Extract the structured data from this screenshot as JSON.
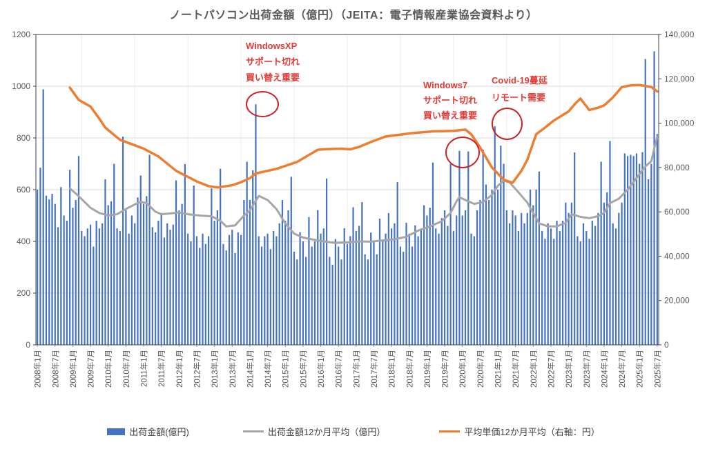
{
  "title": "ノートパソコン出荷金額（億円）（JEITA：電子情報産業協会資料より）",
  "colors": {
    "bar": "#4472C4",
    "avg_line": "#A6A6A6",
    "price_line": "#ED7D31",
    "annotation_text": "#E53935",
    "annotation_circle": "#CB2121",
    "axis_text": "#595959",
    "gridline": "#D9D9D9",
    "gridline_vertical": "#ECECEC",
    "border": "#404040"
  },
  "legend": {
    "items": [
      {
        "label": "出荷金額(億円)",
        "type": "bar"
      },
      {
        "label": "出荷金額12か月平均（億円）",
        "type": "line-gray"
      },
      {
        "label": "平均単価12か月平均（右軸：円）",
        "type": "line-orange"
      }
    ]
  },
  "annotations": {
    "windowsxp": {
      "line1": "WindowsXP",
      "line2": "サポート切れ",
      "line3": "買い替え重要"
    },
    "windows7": {
      "line1": "Windows7",
      "line2": "サポート切れ",
      "line3": "買い替え重要"
    },
    "covid": {
      "line1": "Covid-19蔓延",
      "line2": "リモート需要"
    }
  },
  "axes": {
    "left_ticks": [
      "0",
      "200",
      "400",
      "600",
      "800",
      "1000",
      "1200"
    ],
    "right_ticks": [
      "0",
      "20,000",
      "40,000",
      "60,000",
      "80,000",
      "100,000",
      "120,000",
      "140,000"
    ],
    "x_tick_labels": [
      "2008年1月",
      "2008年7月",
      "2009年1月",
      "2009年7月",
      "2010年1月",
      "2010年7月",
      "2011年1月",
      "2011年7月",
      "2012年1月",
      "2012年7月",
      "2013年1月",
      "2013年7月",
      "2014年1月",
      "2014年7月",
      "2015年1月",
      "2015年7月",
      "2016年1月",
      "2016年7月",
      "2017年1月",
      "2017年7月",
      "2018年1月",
      "2018年7月",
      "2019年1月",
      "2019年7月",
      "2020年1月",
      "2020年7月",
      "2021年1月",
      "2021年7月",
      "2022年1月",
      "2022年7月",
      "2023年1月",
      "2023年7月",
      "2024年1月",
      "2024年7月",
      "2025年1月",
      "2025年7月"
    ]
  },
  "chart_data": {
    "type": "bar",
    "title": "ノートパソコン出荷金額（億円）（JEITA：電子情報産業協会資料より）",
    "start_month": "2008-01",
    "end_month": "2025-07",
    "ylim_left": [
      0,
      1200
    ],
    "ylim_right": [
      0,
      140000
    ],
    "grid": true,
    "legend_position": "bottom",
    "bar_series": {
      "name": "出荷金額(億円)",
      "axis": "left",
      "values": [
        600,
        685,
        988,
        577,
        562,
        584,
        545,
        455,
        610,
        500,
        480,
        677,
        530,
        560,
        730,
        440,
        420,
        450,
        465,
        380,
        480,
        450,
        470,
        640,
        540,
        555,
        700,
        450,
        440,
        805,
        520,
        430,
        500,
        470,
        570,
        655,
        545,
        575,
        735,
        455,
        435,
        480,
        510,
        415,
        470,
        445,
        465,
        636,
        520,
        545,
        699,
        430,
        400,
        616,
        420,
        375,
        430,
        390,
        420,
        605,
        480,
        520,
        681,
        390,
        365,
        425,
        445,
        355,
        435,
        425,
        560,
        708,
        560,
        675,
        930,
        420,
        380,
        420,
        430,
        370,
        440,
        420,
        470,
        560,
        480,
        520,
        650,
        360,
        330,
        436,
        400,
        340,
        494,
        380,
        400,
        521,
        430,
        450,
        643,
        340,
        310,
        409,
        380,
        330,
        451,
        390,
        420,
        532,
        440,
        460,
        552,
        350,
        330,
        434,
        400,
        350,
        488,
        400,
        430,
        509,
        450,
        470,
        629,
        380,
        360,
        472,
        430,
        380,
        462,
        420,
        450,
        540,
        500,
        530,
        705,
        450,
        430,
        490,
        520,
        460,
        700,
        440,
        500,
        750,
        500,
        520,
        748,
        430,
        420,
        520,
        560,
        755,
        620,
        560,
        600,
        845,
        600,
        770,
        700,
        520,
        470,
        520,
        500,
        440,
        510,
        470,
        510,
        600,
        540,
        600,
        670,
        440,
        410,
        470,
        450,
        410,
        480,
        440,
        480,
        550,
        510,
        550,
        744,
        420,
        400,
        470,
        440,
        410,
        480,
        460,
        510,
        708,
        550,
        590,
        788,
        470,
        450,
        510,
        550,
        740,
        730,
        735,
        730,
        740,
        700,
        745,
        1105,
        640,
        700,
        1135,
        815
      ]
    },
    "avg_series": {
      "name": "出荷金額12か月平均（億円）",
      "axis": "left",
      "points": [
        [
          "2008-12",
          605
        ],
        [
          "2009-03",
          575
        ],
        [
          "2009-07",
          530
        ],
        [
          "2009-10",
          510
        ],
        [
          "2010-01",
          500
        ],
        [
          "2010-04",
          505
        ],
        [
          "2010-07",
          525
        ],
        [
          "2010-10",
          543
        ],
        [
          "2010-12",
          553
        ],
        [
          "2011-02",
          548
        ],
        [
          "2011-05",
          515
        ],
        [
          "2011-07",
          505
        ],
        [
          "2011-10",
          508
        ],
        [
          "2012-01",
          512
        ],
        [
          "2012-04",
          505
        ],
        [
          "2012-08",
          500
        ],
        [
          "2012-12",
          497
        ],
        [
          "2013-03",
          480
        ],
        [
          "2013-05",
          458
        ],
        [
          "2013-08",
          462
        ],
        [
          "2013-11",
          500
        ],
        [
          "2014-01",
          520
        ],
        [
          "2014-04",
          576
        ],
        [
          "2014-07",
          560
        ],
        [
          "2014-10",
          525
        ],
        [
          "2015-01",
          470
        ],
        [
          "2015-04",
          430
        ],
        [
          "2015-07",
          415
        ],
        [
          "2015-10",
          408
        ],
        [
          "2016-02",
          400
        ],
        [
          "2016-06",
          394
        ],
        [
          "2016-10",
          396
        ],
        [
          "2017-02",
          400
        ],
        [
          "2017-06",
          399
        ],
        [
          "2017-10",
          404
        ],
        [
          "2018-02",
          408
        ],
        [
          "2018-06",
          418
        ],
        [
          "2018-10",
          442
        ],
        [
          "2019-02",
          458
        ],
        [
          "2019-06",
          478
        ],
        [
          "2019-09",
          510
        ],
        [
          "2019-11",
          555
        ],
        [
          "2019-12",
          571
        ],
        [
          "2020-02",
          560
        ],
        [
          "2020-05",
          545
        ],
        [
          "2020-08",
          552
        ],
        [
          "2020-11",
          580
        ],
        [
          "2021-01",
          615
        ],
        [
          "2021-03",
          635
        ],
        [
          "2021-05",
          628
        ],
        [
          "2021-08",
          590
        ],
        [
          "2021-11",
          550
        ],
        [
          "2022-01",
          510
        ],
        [
          "2022-03",
          470
        ],
        [
          "2022-06",
          458
        ],
        [
          "2022-09",
          458
        ],
        [
          "2022-12",
          472
        ],
        [
          "2023-02",
          505
        ],
        [
          "2023-05",
          495
        ],
        [
          "2023-08",
          490
        ],
        [
          "2023-11",
          498
        ],
        [
          "2024-01",
          510
        ],
        [
          "2024-03",
          548
        ],
        [
          "2024-06",
          565
        ],
        [
          "2024-09",
          600
        ],
        [
          "2024-11",
          630
        ],
        [
          "2025-01",
          660
        ],
        [
          "2025-03",
          690
        ],
        [
          "2025-05",
          710
        ],
        [
          "2025-06",
          760
        ],
        [
          "2025-07",
          805
        ]
      ]
    },
    "price_series": {
      "name": "平均単価12か月平均（右軸：円）",
      "axis": "right",
      "points": [
        [
          "2008-12",
          116000
        ],
        [
          "2009-03",
          110500
        ],
        [
          "2009-07",
          107500
        ],
        [
          "2009-10",
          102000
        ],
        [
          "2009-12",
          98000
        ],
        [
          "2010-05",
          92500
        ],
        [
          "2010-10",
          90000
        ],
        [
          "2011-01",
          88500
        ],
        [
          "2011-06",
          85000
        ],
        [
          "2011-12",
          78500
        ],
        [
          "2012-07",
          73700
        ],
        [
          "2012-11",
          71600
        ],
        [
          "2013-02",
          71000
        ],
        [
          "2013-07",
          72000
        ],
        [
          "2013-10",
          73400
        ],
        [
          "2014-01",
          75200
        ],
        [
          "2014-03",
          77300
        ],
        [
          "2014-10",
          79400
        ],
        [
          "2015-05",
          82500
        ],
        [
          "2015-12",
          88000
        ],
        [
          "2016-03",
          88300
        ],
        [
          "2016-08",
          88500
        ],
        [
          "2016-11",
          88200
        ],
        [
          "2017-02",
          89300
        ],
        [
          "2017-06",
          91500
        ],
        [
          "2017-11",
          94000
        ],
        [
          "2018-08",
          95500
        ],
        [
          "2019-03",
          96300
        ],
        [
          "2019-10",
          96500
        ],
        [
          "2020-02",
          97100
        ],
        [
          "2020-04",
          95000
        ],
        [
          "2020-07",
          89000
        ],
        [
          "2020-11",
          80000
        ],
        [
          "2021-01",
          77300
        ],
        [
          "2021-03",
          74500
        ],
        [
          "2021-06",
          73100
        ],
        [
          "2021-09",
          78500
        ],
        [
          "2021-11",
          83500
        ],
        [
          "2022-02",
          95000
        ],
        [
          "2022-05",
          98000
        ],
        [
          "2022-08",
          101200
        ],
        [
          "2023-01",
          105300
        ],
        [
          "2023-03",
          108500
        ],
        [
          "2023-05",
          111100
        ],
        [
          "2023-08",
          105900
        ],
        [
          "2023-11",
          107000
        ],
        [
          "2024-01",
          108000
        ],
        [
          "2024-04",
          111600
        ],
        [
          "2024-07",
          116300
        ],
        [
          "2024-10",
          117000
        ],
        [
          "2025-01",
          117200
        ],
        [
          "2025-03",
          116800
        ],
        [
          "2025-05",
          116300
        ],
        [
          "2025-07",
          114300
        ]
      ]
    }
  }
}
